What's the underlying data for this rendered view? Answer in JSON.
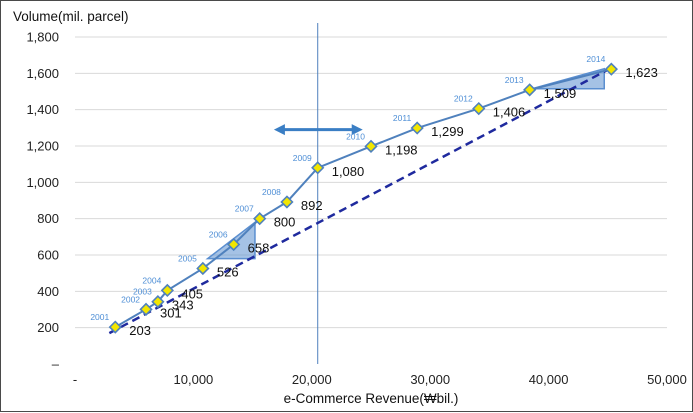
{
  "chart_data": {
    "type": "line",
    "ylabel": "Volume(mil. parcel)",
    "xlabel": "e-Commerce Revenue(₩bil.)",
    "xlim": [
      0,
      50000
    ],
    "ylim": [
      0,
      1800
    ],
    "x_ticks": [
      "-",
      "10,000",
      "20,000",
      "30,000",
      "40,000",
      "50,000"
    ],
    "y_ticks": [
      "–",
      "200",
      "400",
      "600",
      "800",
      "1,000",
      "1,200",
      "1,400",
      "1,600",
      "1,800"
    ],
    "grid": "horizontal",
    "series": [
      {
        "points": [
          {
            "year": "2001",
            "x": 3400,
            "y": 203,
            "label": "203"
          },
          {
            "year": "2002",
            "x": 6000,
            "y": 301,
            "label": "301"
          },
          {
            "year": "2003",
            "x": 7000,
            "y": 343,
            "label": "343"
          },
          {
            "year": "2004",
            "x": 7800,
            "y": 405,
            "label": "405"
          },
          {
            "year": "2005",
            "x": 10800,
            "y": 526,
            "label": "526"
          },
          {
            "year": "2006",
            "x": 13400,
            "y": 658,
            "label": "658"
          },
          {
            "year": "2007",
            "x": 15600,
            "y": 800,
            "label": "800"
          },
          {
            "year": "2008",
            "x": 17900,
            "y": 892,
            "label": "892"
          },
          {
            "year": "2009",
            "x": 20500,
            "y": 1080,
            "label": "1,080"
          },
          {
            "year": "2010",
            "x": 25000,
            "y": 1198,
            "label": "1,198"
          },
          {
            "year": "2011",
            "x": 28900,
            "y": 1299,
            "label": "1,299"
          },
          {
            "year": "2012",
            "x": 34100,
            "y": 1406,
            "label": "1,406"
          },
          {
            "year": "2013",
            "x": 38400,
            "y": 1509,
            "label": "1,509"
          },
          {
            "year": "2014",
            "x": 45300,
            "y": 1623,
            "label": "1,623"
          }
        ]
      }
    ],
    "trend_line": {
      "from": [
        2900,
        170
      ],
      "to": [
        45300,
        1630
      ]
    },
    "vertical_marker_x": 20500,
    "slope_triangles": [
      {
        "x0": 11200,
        "y0": 580,
        "x1": 15200,
        "y1": 780
      },
      {
        "x0": 38600,
        "y0": 1515,
        "x1": 44700,
        "y1": 1625
      }
    ],
    "double_arrow": {
      "x0": 16800,
      "x1": 24300,
      "y": 1290
    },
    "colors": {
      "line": "#4f81bd",
      "trend": "#1f2a9e",
      "marker_fill": "#f2e600",
      "marker_stroke": "#4f81bd",
      "triangle": "#5b8fd0",
      "grid": "#d9d9d9",
      "vline": "#4f81bd",
      "arrow": "#3a7ec4"
    }
  }
}
